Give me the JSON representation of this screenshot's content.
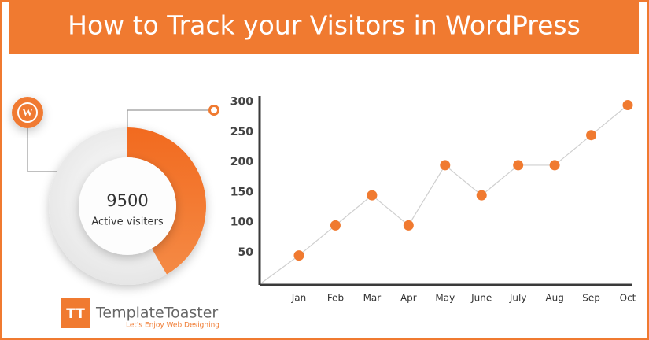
{
  "header": {
    "title": "How to Track your Visitors in WordPress"
  },
  "widget": {
    "count": "9500",
    "label": "Active visiters"
  },
  "brand": {
    "name": "TemplateToaster",
    "tagline": "Let's Enjoy Web Designing",
    "icon": "TT"
  },
  "chart_data": {
    "type": "line",
    "categories": [
      "Jan",
      "Feb",
      "Mar",
      "Apr",
      "May",
      "June",
      "July",
      "Aug",
      "Sep",
      "Oct"
    ],
    "values": [
      45,
      95,
      145,
      95,
      195,
      145,
      195,
      195,
      245,
      295
    ],
    "color": "#f07a30",
    "line_color": "#cfcfcf",
    "ylim": [
      0,
      310
    ],
    "yticks": [
      50,
      100,
      150,
      200,
      250,
      300
    ],
    "grid": false
  }
}
